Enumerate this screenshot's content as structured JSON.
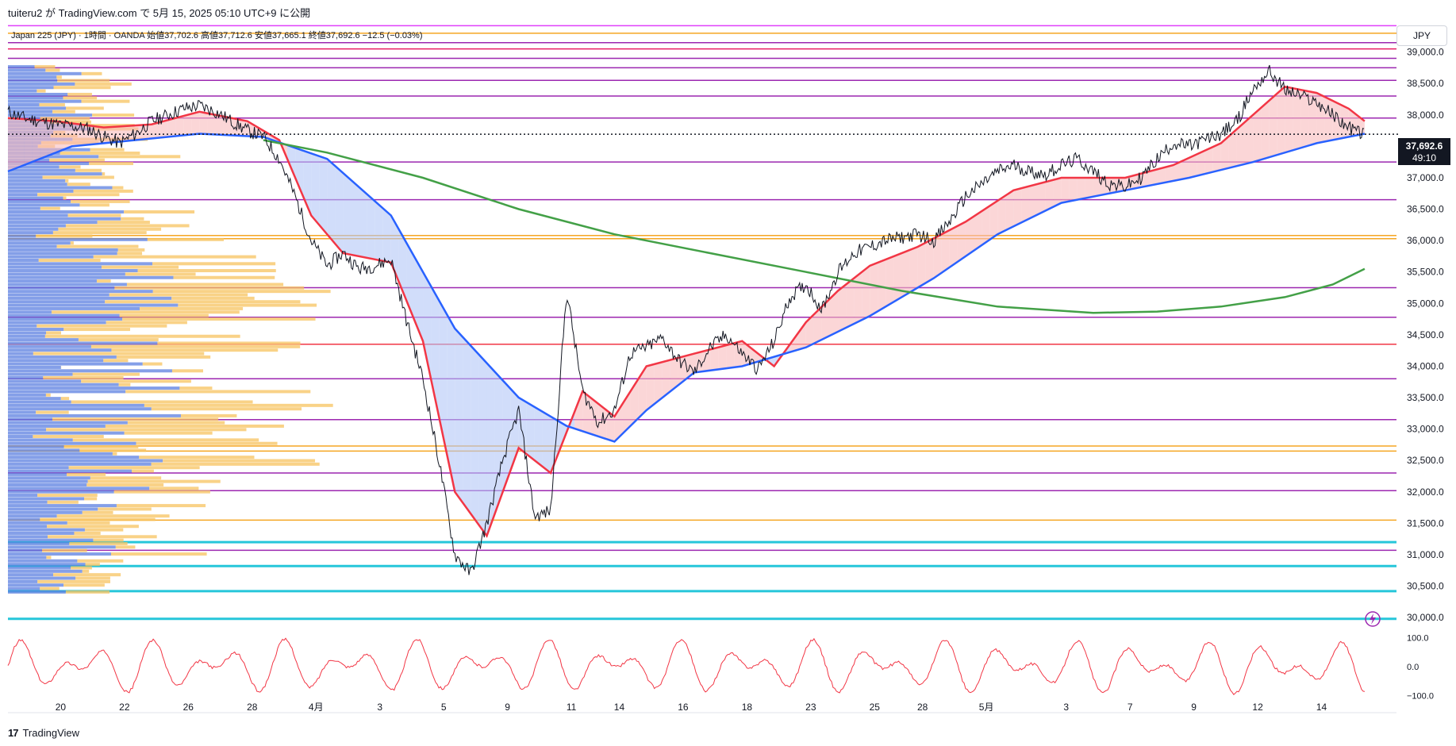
{
  "header": {
    "title": "tuiteru2 が TradingView.com で 5月 15, 2025 05:10 UTC+9 に公開",
    "legend": "Japan 225 (JPY) · 1時間 · OANDA  始値37,702.6  高値37,712.6  安値37,665.1  終値37,692.6  −12.5 (−0.03%)"
  },
  "currency_button": "JPY",
  "footer": {
    "logo_text": "17",
    "brand": "TradingView"
  },
  "chart_data": {
    "type": "line",
    "symbol": "Japan 225 (JPY)",
    "interval": "1時間",
    "source": "OANDA",
    "ohlc": {
      "open": 37702.6,
      "high": 37712.6,
      "low": 37665.1,
      "close": 37692.6,
      "change": -12.5,
      "change_pct": -0.03
    },
    "last_price_label": "37,692.6",
    "countdown_label": "49:10",
    "ylim": [
      29850,
      39450
    ],
    "y_ticks": [
      "39,000.0",
      "38,500.0",
      "38,000.0",
      "37,500.0",
      "37,000.0",
      "36,500.0",
      "36,000.0",
      "35,500.0",
      "35,000.0",
      "34,500.0",
      "34,000.0",
      "33,500.0",
      "33,000.0",
      "32,500.0",
      "32,000.0",
      "31,500.0",
      "31,000.0",
      "30,500.0",
      "30,000.0"
    ],
    "y_tick_values": [
      39000,
      38500,
      38000,
      37500,
      37000,
      36500,
      36000,
      35500,
      35000,
      34500,
      34000,
      33500,
      33000,
      32500,
      32000,
      31500,
      31000,
      30500,
      30000
    ],
    "x_ticks": [
      "20",
      "22",
      "26",
      "28",
      "4月",
      "3",
      "5",
      "9",
      "11",
      "14",
      "16",
      "18",
      "23",
      "25",
      "28",
      "5月",
      "3",
      "7",
      "9",
      "12",
      "14"
    ],
    "x_tick_positions_index": [
      3.3,
      7.3,
      11.3,
      15.3,
      19.3,
      23.3,
      27.3,
      31.3,
      35.3,
      38.3,
      42.3,
      46.3,
      50.3,
      54.3,
      57.3,
      61.3,
      66.3,
      70.3,
      74.3,
      78.3,
      82.3
    ],
    "x_count": 86,
    "price_path": [
      [
        0,
        38050
      ],
      [
        1,
        37950
      ],
      [
        2,
        37900
      ],
      [
        3,
        37850
      ],
      [
        4,
        37820
      ],
      [
        5,
        37780
      ],
      [
        6,
        37650
      ],
      [
        7,
        37550
      ],
      [
        8,
        37700
      ],
      [
        9,
        37900
      ],
      [
        10,
        38000
      ],
      [
        11,
        38100
      ],
      [
        12,
        38150
      ],
      [
        13,
        38050
      ],
      [
        14,
        37900
      ],
      [
        15,
        37750
      ],
      [
        16,
        37650
      ],
      [
        17,
        37300
      ],
      [
        18,
        36700
      ],
      [
        19,
        36000
      ],
      [
        20,
        35600
      ],
      [
        21,
        35800
      ],
      [
        22,
        35550
      ],
      [
        23,
        35600
      ],
      [
        24,
        35700
      ],
      [
        25,
        34700
      ],
      [
        26,
        33800
      ],
      [
        27,
        32500
      ],
      [
        28,
        31000
      ],
      [
        29,
        30700
      ],
      [
        30,
        31500
      ],
      [
        31,
        32500
      ],
      [
        32,
        33300
      ],
      [
        33,
        31600
      ],
      [
        34,
        31700
      ],
      [
        35,
        35200
      ],
      [
        36,
        33600
      ],
      [
        37,
        33100
      ],
      [
        38,
        33300
      ],
      [
        39,
        34200
      ],
      [
        40,
        34300
      ],
      [
        41,
        34450
      ],
      [
        42,
        34100
      ],
      [
        43,
        33900
      ],
      [
        44,
        34300
      ],
      [
        45,
        34500
      ],
      [
        46,
        34200
      ],
      [
        47,
        33950
      ],
      [
        48,
        34400
      ],
      [
        49,
        35100
      ],
      [
        50,
        35300
      ],
      [
        51,
        34900
      ],
      [
        52,
        35500
      ],
      [
        53,
        35800
      ],
      [
        54,
        35900
      ],
      [
        55,
        36000
      ],
      [
        56,
        36050
      ],
      [
        57,
        36100
      ],
      [
        58,
        36000
      ],
      [
        59,
        36300
      ],
      [
        60,
        36700
      ],
      [
        61,
        36900
      ],
      [
        62,
        37100
      ],
      [
        63,
        37200
      ],
      [
        64,
        37100
      ],
      [
        65,
        37050
      ],
      [
        66,
        37200
      ],
      [
        67,
        37300
      ],
      [
        68,
        37100
      ],
      [
        69,
        36900
      ],
      [
        70,
        36850
      ],
      [
        71,
        37000
      ],
      [
        72,
        37300
      ],
      [
        73,
        37550
      ],
      [
        74,
        37500
      ],
      [
        75,
        37600
      ],
      [
        76,
        37700
      ],
      [
        77,
        37900
      ],
      [
        78,
        38400
      ],
      [
        79,
        38700
      ],
      [
        80,
        38400
      ],
      [
        81,
        38300
      ],
      [
        82,
        38200
      ],
      [
        83,
        38000
      ],
      [
        84,
        37800
      ],
      [
        85,
        37692
      ]
    ],
    "series": [
      {
        "color": "#f23645",
        "values": [
          [
            0,
            37950
          ],
          [
            3,
            37900
          ],
          [
            6,
            37800
          ],
          [
            9,
            37850
          ],
          [
            12,
            38050
          ],
          [
            15,
            37900
          ],
          [
            17,
            37600
          ],
          [
            19,
            36400
          ],
          [
            21,
            35800
          ],
          [
            24,
            35650
          ],
          [
            26,
            34400
          ],
          [
            28,
            32000
          ],
          [
            30,
            31300
          ],
          [
            32,
            32700
          ],
          [
            34,
            32300
          ],
          [
            36,
            33600
          ],
          [
            38,
            33200
          ],
          [
            40,
            34000
          ],
          [
            43,
            34200
          ],
          [
            46,
            34400
          ],
          [
            48,
            34000
          ],
          [
            50,
            34700
          ],
          [
            52,
            35200
          ],
          [
            54,
            35600
          ],
          [
            57,
            35900
          ],
          [
            60,
            36300
          ],
          [
            63,
            36800
          ],
          [
            66,
            37000
          ],
          [
            70,
            37000
          ],
          [
            73,
            37200
          ],
          [
            76,
            37550
          ],
          [
            78,
            38000
          ],
          [
            80,
            38450
          ],
          [
            82,
            38350
          ],
          [
            84,
            38100
          ],
          [
            85,
            37900
          ]
        ]
      },
      {
        "color": "#2962ff",
        "values": [
          [
            0,
            37100
          ],
          [
            4,
            37500
          ],
          [
            8,
            37600
          ],
          [
            12,
            37700
          ],
          [
            16,
            37650
          ],
          [
            20,
            37300
          ],
          [
            24,
            36400
          ],
          [
            28,
            34600
          ],
          [
            32,
            33500
          ],
          [
            35,
            33050
          ],
          [
            38,
            32800
          ],
          [
            40,
            33300
          ],
          [
            43,
            33900
          ],
          [
            46,
            34000
          ],
          [
            50,
            34300
          ],
          [
            54,
            34800
          ],
          [
            58,
            35400
          ],
          [
            62,
            36100
          ],
          [
            66,
            36600
          ],
          [
            70,
            36800
          ],
          [
            74,
            37000
          ],
          [
            78,
            37250
          ],
          [
            82,
            37550
          ],
          [
            85,
            37700
          ]
        ]
      },
      {
        "color": "#43a047",
        "values": [
          [
            16,
            37600
          ],
          [
            20,
            37400
          ],
          [
            26,
            37000
          ],
          [
            32,
            36500
          ],
          [
            38,
            36100
          ],
          [
            44,
            35800
          ],
          [
            50,
            35500
          ],
          [
            56,
            35200
          ],
          [
            62,
            34950
          ],
          [
            68,
            34850
          ],
          [
            72,
            34870
          ],
          [
            76,
            34950
          ],
          [
            80,
            35100
          ],
          [
            83,
            35300
          ],
          [
            85,
            35550
          ]
        ]
      }
    ],
    "oscillator": {
      "ylim": [
        -110,
        110
      ],
      "y_ticks": [
        "100.0",
        "0.0",
        "−100.0"
      ],
      "y_tick_values": [
        100,
        0,
        -100
      ],
      "color": "#f23645"
    },
    "horizontal_levels": [
      {
        "value": 39420,
        "color": "#e040fb"
      },
      {
        "value": 39300,
        "color": "#f5a623"
      },
      {
        "value": 39150,
        "color": "#9c27b0"
      },
      {
        "value": 39050,
        "color": "#e91e63"
      },
      {
        "value": 38900,
        "color": "#9c27b0"
      },
      {
        "value": 38750,
        "color": "#9c27b0"
      },
      {
        "value": 38550,
        "color": "#9c27b0"
      },
      {
        "value": 38300,
        "color": "#9c27b0"
      },
      {
        "value": 37950,
        "color": "#9c27b0"
      },
      {
        "value": 37250,
        "color": "#9c27b0"
      },
      {
        "value": 36650,
        "color": "#9c27b0"
      },
      {
        "value": 36080,
        "color": "#f5a623"
      },
      {
        "value": 36030,
        "color": "#f5a623"
      },
      {
        "value": 35250,
        "color": "#9c27b0"
      },
      {
        "value": 34780,
        "color": "#9c27b0"
      },
      {
        "value": 34350,
        "color": "#f23645"
      },
      {
        "value": 33800,
        "color": "#9c27b0"
      },
      {
        "value": 33150,
        "color": "#9c27b0"
      },
      {
        "value": 32730,
        "color": "#f5a623"
      },
      {
        "value": 32650,
        "color": "#f5a623"
      },
      {
        "value": 32300,
        "color": "#9c27b0"
      },
      {
        "value": 32020,
        "color": "#9c27b0"
      },
      {
        "value": 31550,
        "color": "#f5a623"
      },
      {
        "value": 31200,
        "color": "#26c6da"
      },
      {
        "value": 31070,
        "color": "#9c27b0"
      },
      {
        "value": 30820,
        "color": "#26c6da"
      },
      {
        "value": 30420,
        "color": "#26c6da"
      },
      {
        "value": 29980,
        "color": "#26c6da"
      }
    ],
    "last_price_line": 37692.6
  }
}
